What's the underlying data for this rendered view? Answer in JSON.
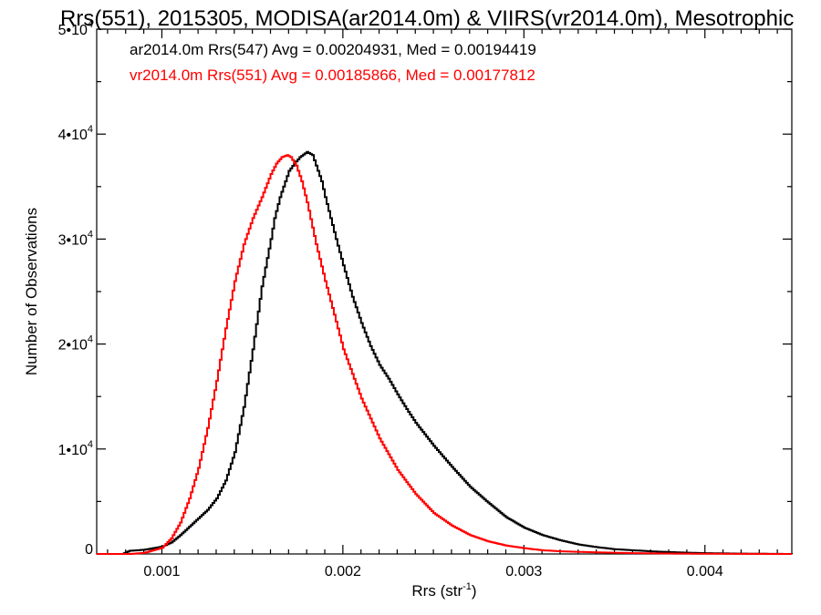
{
  "chart_data": {
    "type": "line",
    "title": "Rrs(551), 2015305, MODISA(ar2014.0m) & VIIRS(vr2014.0m), Mesotrophic",
    "xlabel": "Rrs (str",
    "xlabel_superscript": "-1",
    "xlabel_suffix": ")",
    "ylabel": "Number of Observations",
    "xlim": [
      0.00064,
      0.00448
    ],
    "ylim": [
      0,
      50000
    ],
    "x_ticks": [
      {
        "value": 0.001,
        "label": "0.001"
      },
      {
        "value": 0.002,
        "label": "0.002"
      },
      {
        "value": 0.003,
        "label": "0.003"
      },
      {
        "value": 0.004,
        "label": "0.004"
      }
    ],
    "y_ticks": [
      {
        "value": 0,
        "label": "0",
        "exp": ""
      },
      {
        "value": 10000,
        "label": "1•10",
        "exp": "4"
      },
      {
        "value": 20000,
        "label": "2•10",
        "exp": "4"
      },
      {
        "value": 30000,
        "label": "3•10",
        "exp": "4"
      },
      {
        "value": 40000,
        "label": "4•10",
        "exp": "4"
      },
      {
        "value": 50000,
        "label": "5•10",
        "exp": "4"
      }
    ],
    "grid": false,
    "legend_position": "top-left",
    "series": [
      {
        "name": "ar2014.0m Rrs(547) Avg = 0.00204931, Med = 0.00194419",
        "color": "#000000",
        "x": [
          0.00064,
          0.00078,
          0.00082,
          0.0009,
          0.001,
          0.00105,
          0.0011,
          0.00115,
          0.0012,
          0.00125,
          0.0013,
          0.00135,
          0.0014,
          0.00145,
          0.0015,
          0.00155,
          0.0016,
          0.00162,
          0.00165,
          0.00168,
          0.0017,
          0.00173,
          0.00176,
          0.0018,
          0.00183,
          0.00185,
          0.00188,
          0.0019,
          0.00193,
          0.00196,
          0.002,
          0.00205,
          0.0021,
          0.00215,
          0.0022,
          0.00225,
          0.0023,
          0.00235,
          0.0024,
          0.0025,
          0.0026,
          0.0027,
          0.0028,
          0.0029,
          0.003,
          0.0031,
          0.0032,
          0.0033,
          0.0034,
          0.0035,
          0.0036,
          0.0037,
          0.0038,
          0.0039,
          0.004,
          0.0042,
          0.00448
        ],
        "values": [
          0,
          0,
          300,
          400,
          700,
          1100,
          1800,
          2600,
          3400,
          4200,
          5300,
          7000,
          9700,
          14000,
          19500,
          25500,
          30000,
          32000,
          34000,
          35500,
          36500,
          37200,
          37800,
          38300,
          38000,
          37000,
          35500,
          34000,
          32000,
          30000,
          27500,
          24500,
          22000,
          19800,
          18000,
          16700,
          15200,
          13800,
          12500,
          10300,
          8300,
          6400,
          4900,
          3500,
          2500,
          1800,
          1300,
          900,
          650,
          450,
          350,
          250,
          180,
          120,
          80,
          30,
          0
        ]
      },
      {
        "name": "vr2014.0m Rrs(551) Avg = 0.00185866, Med = 0.00177812",
        "color": "#ff0000",
        "x": [
          0.00064,
          0.00082,
          0.0009,
          0.001,
          0.00105,
          0.0011,
          0.00115,
          0.0012,
          0.00125,
          0.0013,
          0.00135,
          0.0014,
          0.00145,
          0.0015,
          0.00155,
          0.0016,
          0.00163,
          0.00166,
          0.00169,
          0.00171,
          0.00174,
          0.00177,
          0.0018,
          0.00185,
          0.0019,
          0.00195,
          0.002,
          0.0021,
          0.0022,
          0.0023,
          0.0024,
          0.0025,
          0.0026,
          0.0027,
          0.0028,
          0.0029,
          0.003,
          0.0031,
          0.0032,
          0.0034,
          0.0036,
          0.0038,
          0.004,
          0.00448
        ],
        "values": [
          0,
          0,
          100,
          600,
          1500,
          3000,
          5300,
          8200,
          12000,
          16500,
          21500,
          26000,
          29500,
          32000,
          34000,
          36200,
          37200,
          37800,
          38000,
          37800,
          37000,
          35500,
          33500,
          29500,
          26000,
          22800,
          19500,
          14800,
          11000,
          8000,
          5700,
          3900,
          2700,
          1800,
          1200,
          800,
          550,
          350,
          250,
          150,
          80,
          40,
          20,
          0
        ]
      }
    ]
  }
}
